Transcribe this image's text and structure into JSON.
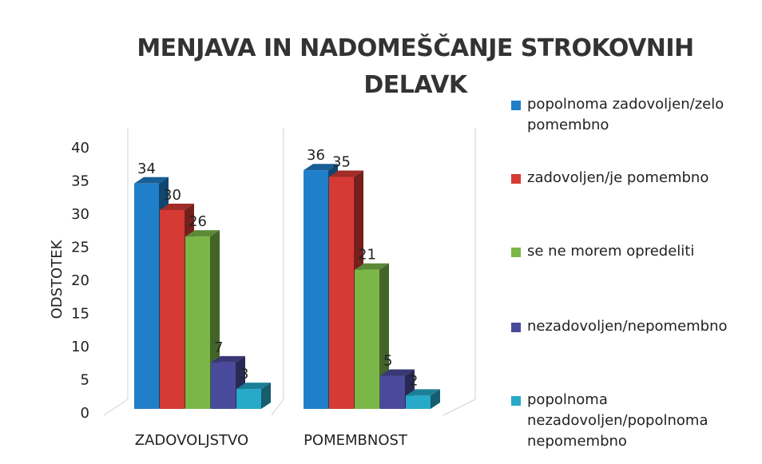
{
  "chart_data": {
    "type": "bar3d",
    "title": "MENJAVA IN NADOMEŠČANJE STROKOVNIH DELAVK",
    "y_label": "ODSTOTEK",
    "categories": [
      "ZADOVOLJSTVO",
      "POMEMBNOST"
    ],
    "series": [
      {
        "name": "popolnoma zadovoljen/zelo pomembno",
        "color": "#1f7fc8",
        "values": [
          34,
          36
        ]
      },
      {
        "name": "zadovoljen/je pomembno",
        "color": "#d63a35",
        "values": [
          30,
          35
        ]
      },
      {
        "name": "se ne morem opredeliti",
        "color": "#7ab648",
        "values": [
          26,
          21
        ]
      },
      {
        "name": "nezadovoljen/nepomembno",
        "color": "#4a4a9c",
        "values": [
          7,
          5
        ]
      },
      {
        "name": "popolnoma nezadovoljen/popolnoma nepomembno",
        "color": "#27a9c9",
        "values": [
          3,
          2
        ]
      }
    ],
    "ylim": [
      0,
      40
    ],
    "yticks": [
      0,
      5,
      10,
      15,
      20,
      25,
      30,
      35,
      40
    ],
    "legend": "right"
  }
}
